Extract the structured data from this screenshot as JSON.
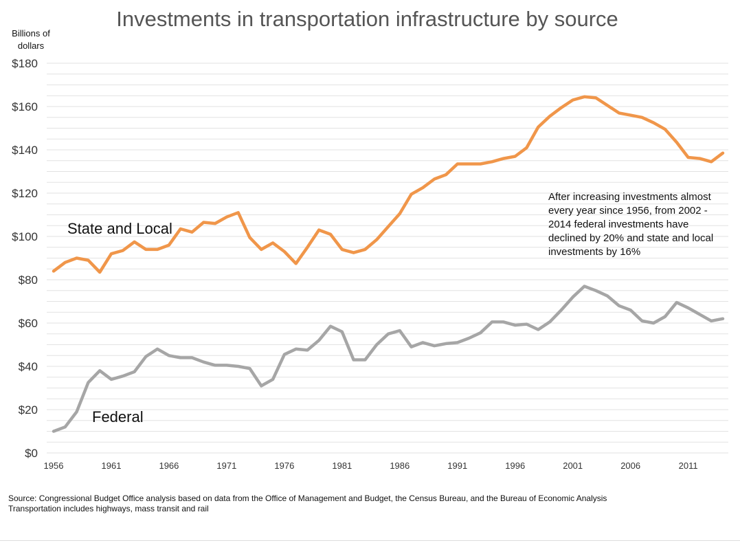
{
  "chart_data": {
    "type": "line",
    "title": "Investments in transportation infrastructure by source",
    "ylabel": "Billions of dollars",
    "xlim": [
      1956,
      2014
    ],
    "ylim": [
      0,
      180
    ],
    "yticks": [
      {
        "value": 0,
        "label": "$0"
      },
      {
        "value": 20,
        "label": "$20"
      },
      {
        "value": 40,
        "label": "$40"
      },
      {
        "value": 60,
        "label": "$60"
      },
      {
        "value": 80,
        "label": "$80"
      },
      {
        "value": 100,
        "label": "$100"
      },
      {
        "value": 120,
        "label": "$120"
      },
      {
        "value": 140,
        "label": "$140"
      },
      {
        "value": 160,
        "label": "$160"
      },
      {
        "value": 180,
        "label": "$180"
      }
    ],
    "xticks": [
      {
        "value": 1956,
        "label": "1956"
      },
      {
        "value": 1961,
        "label": "1961"
      },
      {
        "value": 1966,
        "label": "1966"
      },
      {
        "value": 1971,
        "label": "1971"
      },
      {
        "value": 1976,
        "label": "1976"
      },
      {
        "value": 1981,
        "label": "1981"
      },
      {
        "value": 1986,
        "label": "1986"
      },
      {
        "value": 1991,
        "label": "1991"
      },
      {
        "value": 1996,
        "label": "1996"
      },
      {
        "value": 2001,
        "label": "2001"
      },
      {
        "value": 2006,
        "label": "2006"
      },
      {
        "value": 2011,
        "label": "2011"
      }
    ],
    "grid": true,
    "x": [
      1956,
      1957,
      1958,
      1959,
      1960,
      1961,
      1962,
      1963,
      1964,
      1965,
      1966,
      1967,
      1968,
      1969,
      1970,
      1971,
      1972,
      1973,
      1974,
      1975,
      1976,
      1977,
      1978,
      1979,
      1980,
      1981,
      1982,
      1983,
      1984,
      1985,
      1986,
      1987,
      1988,
      1989,
      1990,
      1991,
      1992,
      1993,
      1994,
      1995,
      1996,
      1997,
      1998,
      1999,
      2000,
      2001,
      2002,
      2003,
      2004,
      2005,
      2006,
      2007,
      2008,
      2009,
      2010,
      2011,
      2012,
      2013,
      2014
    ],
    "series": [
      {
        "name": "State and Local",
        "color": "#f0964a",
        "values": [
          84,
          88,
          90,
          89,
          83.5,
          92,
          93.5,
          97.5,
          94,
          94,
          96,
          103.5,
          102,
          106.5,
          106,
          109,
          111,
          99.5,
          94,
          97,
          93,
          87.5,
          95,
          103,
          101,
          94,
          92.5,
          94,
          98.5,
          104.5,
          110.5,
          119.5,
          122.5,
          126.5,
          128.5,
          133.5,
          133.5,
          133.5,
          134.5,
          136,
          137,
          141,
          150.5,
          155.5,
          159.5,
          163,
          164.5,
          164,
          160.5,
          157,
          156,
          155,
          152.5,
          149.5,
          143.5,
          136.5,
          136,
          134.5,
          138.5
        ]
      },
      {
        "name": "Federal",
        "color": "#a6a6a6",
        "values": [
          10,
          12,
          19,
          32.5,
          38,
          34,
          35.5,
          37.5,
          44.5,
          48,
          45,
          44,
          44,
          42,
          40.5,
          40.5,
          40,
          39,
          31,
          34,
          45.5,
          48,
          47.5,
          52,
          58.5,
          56,
          43,
          43,
          50,
          55,
          56.5,
          49,
          51,
          49.5,
          50.5,
          51,
          53,
          55.5,
          60.5,
          60.5,
          59,
          59.5,
          57,
          60.5,
          66,
          72,
          77,
          75,
          72.5,
          68,
          66,
          61,
          60,
          63,
          69.5,
          67,
          64,
          61,
          62
        ]
      }
    ],
    "annotations": [
      {
        "text": "After increasing investments almost every year since 1956, from 2002  - 2014 federal investments have declined by 20% and state and local investments by 16%"
      }
    ]
  },
  "text": {
    "title": "Investments in transportation infrastructure by source",
    "yunit_line1": "Billions of",
    "yunit_line2": "dollars",
    "label_state": "State and Local",
    "label_federal": "Federal",
    "note": "After increasing investments almost every year since 1956, from 2002  - 2014 federal investments have declined by 20% and state and local investments by 16%",
    "source_line1": "Source: Congressional Budget Office analysis based on data from the Office of Management and Budget, the Census Bureau, and the Bureau of Economic Analysis",
    "source_line2": "Transportation includes highways, mass transit and rail"
  }
}
